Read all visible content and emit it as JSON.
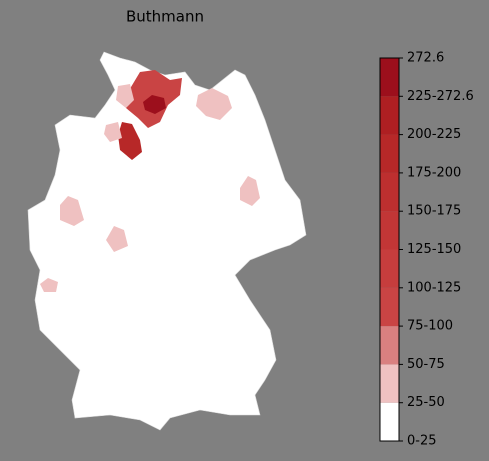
{
  "title": "Buthmann",
  "colorbar": {
    "ticks": [
      "0-25",
      "25-50",
      "50-75",
      "75-100",
      "100-125",
      "125-150",
      "150-175",
      "175-200",
      "200-225",
      "225-272.6",
      "272.6"
    ],
    "colors": [
      "#ffffff",
      "#efc1c1",
      "#d98080",
      "#c94444",
      "#c63d3d",
      "#c23636",
      "#bd2f2f",
      "#b72828",
      "#ae1f22",
      "#9c0f1c"
    ]
  }
}
